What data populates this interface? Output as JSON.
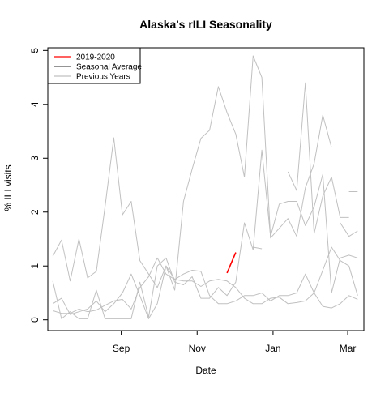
{
  "chart_data": {
    "type": "line",
    "title": "Alaska's rILI Seasonality",
    "xlabel": "Date",
    "ylabel": "% ILI visits",
    "ylim": [
      -0.2,
      5.05
    ],
    "yticks": [
      0,
      1,
      2,
      3,
      4,
      5
    ],
    "x_axis": {
      "unit": "week_start_date",
      "range": [
        "2019-07-04",
        "2020-03-14"
      ],
      "ticks": [
        {
          "date": "2019-09-01",
          "label": "Sep"
        },
        {
          "date": "2019-11-01",
          "label": "Nov"
        },
        {
          "date": "2020-01-01",
          "label": "Jan"
        },
        {
          "date": "2020-03-01",
          "label": "Mar"
        }
      ]
    },
    "legend": {
      "position": "top-left",
      "entries": [
        {
          "label": "2019-2020",
          "color": "#ff0000"
        },
        {
          "label": "Seasonal Average",
          "color": "#555555"
        },
        {
          "label": "Previous Years",
          "color": "#c0c0c0"
        }
      ]
    },
    "x": [
      "2019-07-08",
      "2019-07-15",
      "2019-07-22",
      "2019-07-29",
      "2019-08-05",
      "2019-08-12",
      "2019-08-19",
      "2019-08-26",
      "2019-09-02",
      "2019-09-09",
      "2019-09-16",
      "2019-09-23",
      "2019-09-30",
      "2019-10-07",
      "2019-10-14",
      "2019-10-21",
      "2019-10-28",
      "2019-11-04",
      "2019-11-11",
      "2019-11-18",
      "2019-11-25",
      "2019-12-02",
      "2019-12-09",
      "2019-12-16",
      "2019-12-23",
      "2019-12-30",
      "2020-01-06",
      "2020-01-13",
      "2020-01-20",
      "2020-01-27",
      "2020-02-03",
      "2020-02-10",
      "2020-02-17",
      "2020-02-24",
      "2020-03-02",
      "2020-03-09"
    ],
    "series": [
      {
        "name": "2019-2020",
        "color": "#ff0000",
        "width": 1.6,
        "values": [
          null,
          null,
          null,
          null,
          null,
          null,
          null,
          null,
          null,
          null,
          null,
          null,
          null,
          null,
          null,
          null,
          null,
          null,
          null,
          null,
          0.87,
          1.25,
          null,
          null,
          null,
          null,
          null,
          null,
          null,
          null,
          null,
          null,
          null,
          null,
          null,
          null
        ]
      },
      {
        "color": "#c0c0c0",
        "width": 1,
        "values": [
          1.18,
          1.48,
          0.72,
          1.5,
          0.78,
          0.9,
          2.1,
          3.38,
          1.95,
          2.2,
          1.1,
          0.85,
          0.6,
          1.0,
          0.55,
          2.2,
          2.8,
          3.37,
          3.52,
          4.33,
          3.85,
          3.45,
          2.65,
          4.9,
          4.5,
          1.52,
          1.7,
          1.88,
          1.55,
          2.45,
          2.9,
          3.8,
          3.2,
          null,
          null,
          null
        ]
      },
      {
        "color": "#c0c0c0",
        "width": 1,
        "values": [
          0.72,
          0.02,
          0.15,
          0.02,
          0.02,
          0.55,
          0.02,
          0.02,
          0.02,
          0.02,
          0.7,
          0.05,
          1.0,
          1.15,
          0.7,
          0.65,
          0.8,
          0.4,
          0.4,
          0.6,
          0.45,
          0.7,
          1.8,
          1.3,
          3.15,
          1.55,
          2.15,
          2.2,
          2.2,
          1.75,
          2.1,
          2.7,
          0.5,
          1.15,
          1.2,
          1.15
        ]
      },
      {
        "color": "#c0c0c0",
        "width": 1,
        "values": [
          0.3,
          0.4,
          0.1,
          0.15,
          0.2,
          0.35,
          0.15,
          0.3,
          0.5,
          0.85,
          0.45,
          0.02,
          0.3,
          1.0,
          0.75,
          0.85,
          0.92,
          0.9,
          0.45,
          0.3,
          0.3,
          0.35,
          0.45,
          0.45,
          0.5,
          0.35,
          0.45,
          0.45,
          0.5,
          0.85,
          0.5,
          0.25,
          0.22,
          0.3,
          0.45,
          0.38
        ]
      },
      {
        "color": "#c0c0c0",
        "width": 1,
        "values": [
          0.17,
          0.12,
          0.12,
          0.2,
          0.15,
          0.18,
          0.27,
          0.35,
          0.38,
          0.2,
          0.6,
          0.8,
          1.15,
          0.85,
          0.75,
          0.72,
          0.72,
          0.62,
          0.72,
          0.75,
          0.72,
          0.6,
          0.4,
          0.3,
          0.3,
          0.4,
          0.42,
          0.3,
          0.32,
          0.35,
          0.5,
          0.92,
          1.35,
          1.1,
          1.0,
          0.45
        ]
      },
      {
        "color": "#c0c0c0",
        "width": 1,
        "values": [
          null,
          null,
          null,
          null,
          null,
          null,
          null,
          null,
          null,
          null,
          null,
          null,
          null,
          null,
          null,
          null,
          null,
          null,
          null,
          null,
          null,
          1.45,
          null,
          1.35,
          1.32,
          null,
          null,
          2.75,
          2.4,
          4.4,
          1.6,
          2.3,
          2.65,
          1.9,
          1.9,
          null
        ]
      },
      {
        "color": "#c0c0c0",
        "width": 1,
        "values": [
          null,
          null,
          null,
          null,
          null,
          null,
          null,
          null,
          null,
          null,
          null,
          null,
          null,
          null,
          null,
          null,
          null,
          null,
          null,
          null,
          null,
          null,
          null,
          null,
          null,
          null,
          null,
          null,
          null,
          null,
          null,
          null,
          null,
          1.8,
          1.55,
          1.65
        ]
      },
      {
        "color": "#c0c0c0",
        "width": 1,
        "values": [
          null,
          null,
          null,
          null,
          null,
          null,
          null,
          null,
          null,
          null,
          null,
          null,
          null,
          null,
          null,
          null,
          null,
          null,
          null,
          null,
          null,
          null,
          null,
          null,
          null,
          null,
          null,
          null,
          null,
          null,
          null,
          null,
          null,
          null,
          2.38,
          2.38
        ]
      }
    ]
  }
}
